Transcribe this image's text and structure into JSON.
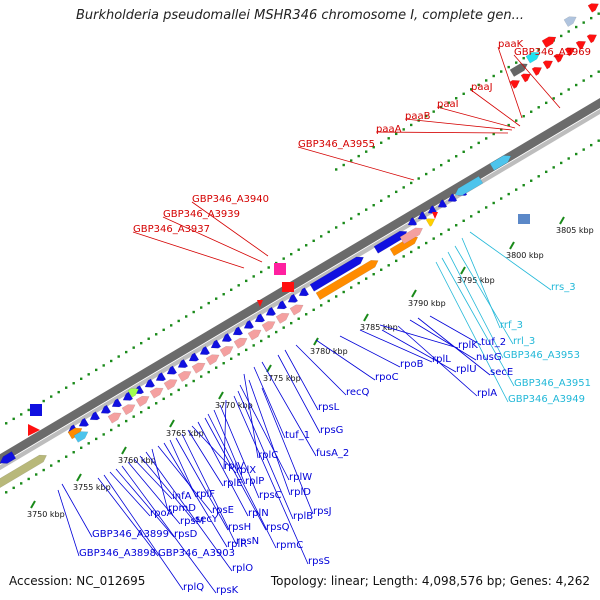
{
  "title": "Burkholderia pseudomallei MSHR346 chromosome I, complete gen...",
  "accession": "Accession: NC_012695",
  "summary": "Topology: linear; Length: 4,098,576 bp; Genes: 4,262",
  "colors": {
    "red_label": "#d40000",
    "blue_label": "#0000d8",
    "cyan_label": "#22b8d8",
    "backbone": "#555555",
    "dots": "#1a8a1a"
  },
  "ticks": [
    {
      "label": "3750 kbp"
    },
    {
      "label": "3755 kbp"
    },
    {
      "label": "3760 kbp"
    },
    {
      "label": "3765 kbp"
    },
    {
      "label": "3770 kbp"
    },
    {
      "label": "3775 kbp"
    },
    {
      "label": "3780 kbp"
    },
    {
      "label": "3785 kbp"
    },
    {
      "label": "3790 kbp"
    },
    {
      "label": "3795 kbp"
    },
    {
      "label": "3800 kbp"
    },
    {
      "label": "3805 kbp"
    }
  ],
  "red_genes": [
    {
      "label": "paaK"
    },
    {
      "label": "GBP346_A3969"
    },
    {
      "label": "paaJ"
    },
    {
      "label": "paaI"
    },
    {
      "label": "paaB"
    },
    {
      "label": "paaA"
    },
    {
      "label": "GBP346_A3955"
    },
    {
      "label": "GBP346_A3940"
    },
    {
      "label": "GBP346_A3939"
    },
    {
      "label": "GBP346_A3937"
    }
  ],
  "blue_genes": [
    {
      "label": "recQ"
    },
    {
      "label": "rpoC"
    },
    {
      "label": "rpoB"
    },
    {
      "label": "rplL"
    },
    {
      "label": "rplK"
    },
    {
      "label": "rplU"
    },
    {
      "label": "rplA"
    },
    {
      "label": "nusG"
    },
    {
      "label": "secE"
    },
    {
      "label": "tuf_2"
    },
    {
      "label": "rpsL"
    },
    {
      "label": "rpsG"
    },
    {
      "label": "fusA_2"
    },
    {
      "label": "tuf_1"
    },
    {
      "label": "rplC"
    },
    {
      "label": "rplD"
    },
    {
      "label": "rplW"
    },
    {
      "label": "rplB"
    },
    {
      "label": "rpsS"
    },
    {
      "label": "rplV"
    },
    {
      "label": "rpsC"
    },
    {
      "label": "rplP"
    },
    {
      "label": "rpmC"
    },
    {
      "label": "rpsQ"
    },
    {
      "label": "rplN"
    },
    {
      "label": "rplX"
    },
    {
      "label": "rplE"
    },
    {
      "label": "rpsN"
    },
    {
      "label": "rpsH"
    },
    {
      "label": "rplF"
    },
    {
      "label": "rplR"
    },
    {
      "label": "rpsE"
    },
    {
      "label": "rpmD"
    },
    {
      "label": "rplO"
    },
    {
      "label": "secY"
    },
    {
      "label": "infA"
    },
    {
      "label": "rpsM"
    },
    {
      "label": "rpsK"
    },
    {
      "label": "rpsD"
    },
    {
      "label": "rpoA"
    },
    {
      "label": "rplQ"
    },
    {
      "label": "GBP346_A3903"
    },
    {
      "label": "GBP346_A3899"
    },
    {
      "label": "GBP346_A3898"
    },
    {
      "label": "rpsJ"
    }
  ],
  "cyan_genes": [
    {
      "label": "rrs_3"
    },
    {
      "label": "rrf_3"
    },
    {
      "label": "rrl_3"
    },
    {
      "label": "GBP346_A3953"
    },
    {
      "label": "GBP346_A3951"
    },
    {
      "label": "GBP346_A3949"
    }
  ]
}
